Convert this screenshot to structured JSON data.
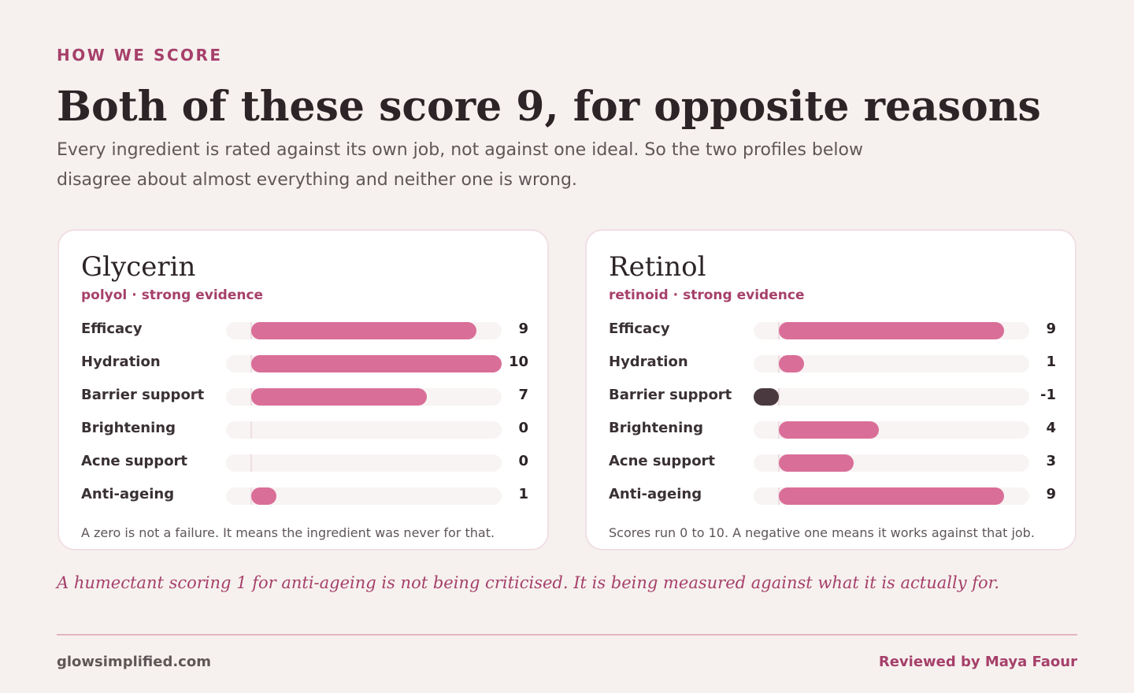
{
  "eyebrow": "HOW WE SCORE",
  "title": "Both of these score 9, for opposite reasons",
  "subtitle": "Every ingredient is rated against its own job, not against one ideal. So the two profiles below disagree about almost everything and neither one is wrong.",
  "cards": [
    {
      "name": "Glycerin",
      "category": "polyol",
      "evidence": "strong evidence",
      "note": "A zero is not a failure. It means the ingredient was never for that."
    },
    {
      "name": "Retinol",
      "category": "retinoid",
      "evidence": "strong evidence",
      "note": "Scores run 0 to 10. A negative one means it works against that job."
    }
  ],
  "chart_data": [
    {
      "type": "bar",
      "orientation": "horizontal",
      "title": "Glycerin",
      "categories": [
        "Efficacy",
        "Hydration",
        "Barrier support",
        "Brightening",
        "Acne support",
        "Anti-ageing"
      ],
      "values": [
        9,
        10,
        7,
        0,
        0,
        1
      ],
      "xlim": [
        -1,
        10
      ],
      "colors": {
        "positive": "#d96e98",
        "negative": "#4a3a3f"
      }
    },
    {
      "type": "bar",
      "orientation": "horizontal",
      "title": "Retinol",
      "categories": [
        "Efficacy",
        "Hydration",
        "Barrier support",
        "Brightening",
        "Acne support",
        "Anti-ageing"
      ],
      "values": [
        9,
        1,
        -1,
        4,
        3,
        9
      ],
      "xlim": [
        -1,
        10
      ],
      "colors": {
        "positive": "#d96e98",
        "negative": "#4a3a3f"
      }
    }
  ],
  "quote": "A humectant scoring 1 for anti-ageing is not being criticised. It is being measured against what it is actually for.",
  "footer": {
    "site": "glowsimplified.com",
    "reviewer": "Reviewed by Maya Faour"
  }
}
